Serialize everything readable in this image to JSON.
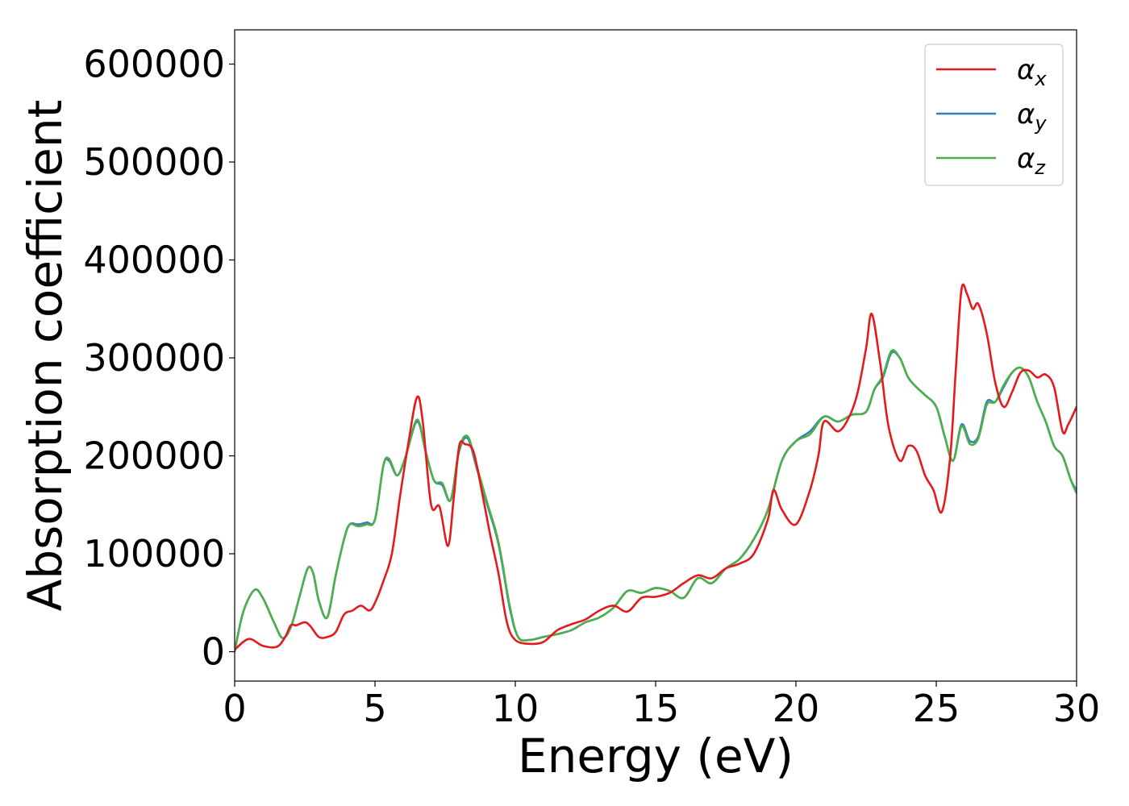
{
  "chart_data": {
    "type": "line",
    "xlabel": "Energy (eV)",
    "ylabel": "Absorption coefficient",
    "xlim": [
      0,
      30
    ],
    "ylim": [
      -30000,
      635000
    ],
    "xticks": [
      0,
      5,
      10,
      15,
      20,
      25,
      30
    ],
    "yticks": [
      0,
      100000,
      200000,
      300000,
      400000,
      500000,
      600000
    ],
    "grid": false,
    "legend_position": "top-right",
    "series": [
      {
        "name": "αx",
        "symbol": "α",
        "subscript": "x",
        "color": "#e41a1c",
        "x": [
          0,
          0.5,
          1.0,
          1.5,
          1.8,
          2.0,
          2.2,
          2.5,
          2.7,
          3.0,
          3.3,
          3.6,
          3.9,
          4.2,
          4.5,
          4.8,
          5.0,
          5.3,
          5.6,
          5.9,
          6.2,
          6.5,
          6.7,
          7.0,
          7.3,
          7.6,
          7.8,
          8.0,
          8.2,
          8.5,
          8.8,
          9.1,
          9.4,
          9.7,
          10.0,
          10.5,
          11.0,
          11.5,
          12.0,
          12.5,
          13.0,
          13.5,
          14.0,
          14.5,
          15.0,
          15.5,
          16.0,
          16.5,
          17.0,
          17.5,
          18.0,
          18.5,
          19.0,
          19.2,
          19.5,
          20.0,
          20.5,
          20.8,
          21.0,
          21.5,
          21.9,
          22.2,
          22.5,
          22.7,
          23.0,
          23.3,
          23.7,
          24.0,
          24.3,
          24.6,
          24.9,
          25.2,
          25.5,
          25.7,
          25.9,
          26.1,
          26.3,
          26.5,
          26.8,
          27.1,
          27.4,
          27.7,
          28.0,
          28.3,
          28.6,
          28.9,
          29.2,
          29.5,
          29.7,
          30.0
        ],
        "y": [
          2000,
          13000,
          6000,
          5000,
          15000,
          27000,
          27000,
          30000,
          26000,
          15000,
          15000,
          20000,
          38000,
          42000,
          47000,
          42000,
          50000,
          72000,
          100000,
          160000,
          215000,
          260000,
          235000,
          150000,
          148000,
          108000,
          155000,
          210000,
          212000,
          205000,
          165000,
          120000,
          80000,
          30000,
          12000,
          8000,
          10000,
          22000,
          28000,
          33000,
          42000,
          47000,
          41000,
          55000,
          56000,
          60000,
          70000,
          78000,
          75000,
          85000,
          90000,
          100000,
          135000,
          165000,
          145000,
          130000,
          165000,
          200000,
          235000,
          225000,
          240000,
          265000,
          310000,
          345000,
          295000,
          230000,
          195000,
          210000,
          205000,
          180000,
          165000,
          143000,
          200000,
          290000,
          370000,
          365000,
          350000,
          355000,
          325000,
          275000,
          250000,
          265000,
          285000,
          287000,
          280000,
          283000,
          270000,
          225000,
          232000,
          250000
        ]
      },
      {
        "name": "αy",
        "symbol": "α",
        "subscript": "y",
        "color": "#377eb8",
        "x": [
          0,
          0.3,
          0.7,
          1.0,
          1.4,
          1.7,
          2.0,
          2.3,
          2.6,
          2.8,
          3.0,
          3.3,
          3.6,
          3.9,
          4.1,
          4.4,
          4.7,
          5.0,
          5.3,
          5.5,
          5.8,
          6.1,
          6.5,
          6.8,
          7.1,
          7.4,
          7.7,
          8.0,
          8.3,
          8.6,
          9.0,
          9.4,
          9.8,
          10.1,
          10.5,
          11.0,
          11.5,
          12.0,
          12.5,
          13.0,
          13.5,
          14.0,
          14.5,
          15.0,
          15.5,
          16.0,
          16.5,
          17.0,
          17.5,
          18.0,
          18.5,
          19.0,
          19.5,
          20.0,
          20.5,
          21.0,
          21.5,
          22.0,
          22.5,
          22.8,
          23.1,
          23.4,
          23.7,
          24.0,
          24.3,
          24.6,
          25.0,
          25.3,
          25.6,
          25.9,
          26.2,
          26.5,
          26.8,
          27.1,
          27.4,
          27.7,
          28.0,
          28.3,
          28.6,
          28.9,
          29.2,
          29.5,
          29.8,
          30.0
        ],
        "y": [
          0,
          40000,
          63000,
          55000,
          30000,
          14000,
          25000,
          55000,
          85000,
          80000,
          52000,
          35000,
          78000,
          115000,
          130000,
          130000,
          132000,
          135000,
          190000,
          195000,
          180000,
          200000,
          235000,
          205000,
          175000,
          170000,
          155000,
          205000,
          218000,
          190000,
          150000,
          110000,
          45000,
          15000,
          12000,
          15000,
          18000,
          22000,
          30000,
          35000,
          45000,
          62000,
          60000,
          65000,
          62000,
          55000,
          75000,
          70000,
          85000,
          95000,
          115000,
          145000,
          195000,
          215000,
          225000,
          240000,
          235000,
          242000,
          245000,
          268000,
          280000,
          305000,
          300000,
          280000,
          270000,
          262000,
          250000,
          220000,
          195000,
          232000,
          215000,
          220000,
          255000,
          255000,
          270000,
          285000,
          290000,
          280000,
          255000,
          235000,
          210000,
          200000,
          175000,
          165000
        ]
      },
      {
        "name": "αz",
        "symbol": "α",
        "subscript": "z",
        "color": "#4daf4a",
        "x": [
          0,
          0.3,
          0.7,
          1.0,
          1.4,
          1.7,
          2.0,
          2.3,
          2.6,
          2.8,
          3.0,
          3.3,
          3.6,
          3.9,
          4.1,
          4.4,
          4.7,
          5.0,
          5.3,
          5.5,
          5.8,
          6.1,
          6.5,
          6.8,
          7.1,
          7.4,
          7.7,
          8.0,
          8.3,
          8.6,
          9.0,
          9.4,
          9.8,
          10.1,
          10.5,
          11.0,
          11.5,
          12.0,
          12.5,
          13.0,
          13.5,
          14.0,
          14.5,
          15.0,
          15.5,
          16.0,
          16.5,
          17.0,
          17.5,
          18.0,
          18.5,
          19.0,
          19.5,
          20.0,
          20.5,
          21.0,
          21.5,
          22.0,
          22.5,
          22.8,
          23.1,
          23.4,
          23.7,
          24.0,
          24.3,
          24.6,
          25.0,
          25.3,
          25.6,
          25.9,
          26.2,
          26.5,
          26.8,
          27.1,
          27.4,
          27.7,
          28.0,
          28.3,
          28.6,
          28.9,
          29.2,
          29.5,
          29.8,
          30.0
        ],
        "y": [
          0,
          40000,
          63000,
          55000,
          30000,
          14000,
          25000,
          55000,
          85000,
          80000,
          52000,
          35000,
          78000,
          115000,
          130000,
          128000,
          130000,
          135000,
          190000,
          197000,
          180000,
          200000,
          237000,
          205000,
          175000,
          172000,
          155000,
          207000,
          220000,
          192000,
          152000,
          112000,
          47000,
          15000,
          12000,
          15000,
          18000,
          22000,
          30000,
          35000,
          45000,
          62000,
          60000,
          65000,
          62000,
          55000,
          75000,
          70000,
          85000,
          95000,
          115000,
          145000,
          195000,
          215000,
          222000,
          240000,
          235000,
          242000,
          245000,
          268000,
          282000,
          307000,
          300000,
          280000,
          270000,
          262000,
          250000,
          220000,
          195000,
          230000,
          212000,
          218000,
          252000,
          255000,
          272000,
          285000,
          290000,
          280000,
          255000,
          235000,
          210000,
          200000,
          175000,
          162000
        ]
      }
    ]
  }
}
